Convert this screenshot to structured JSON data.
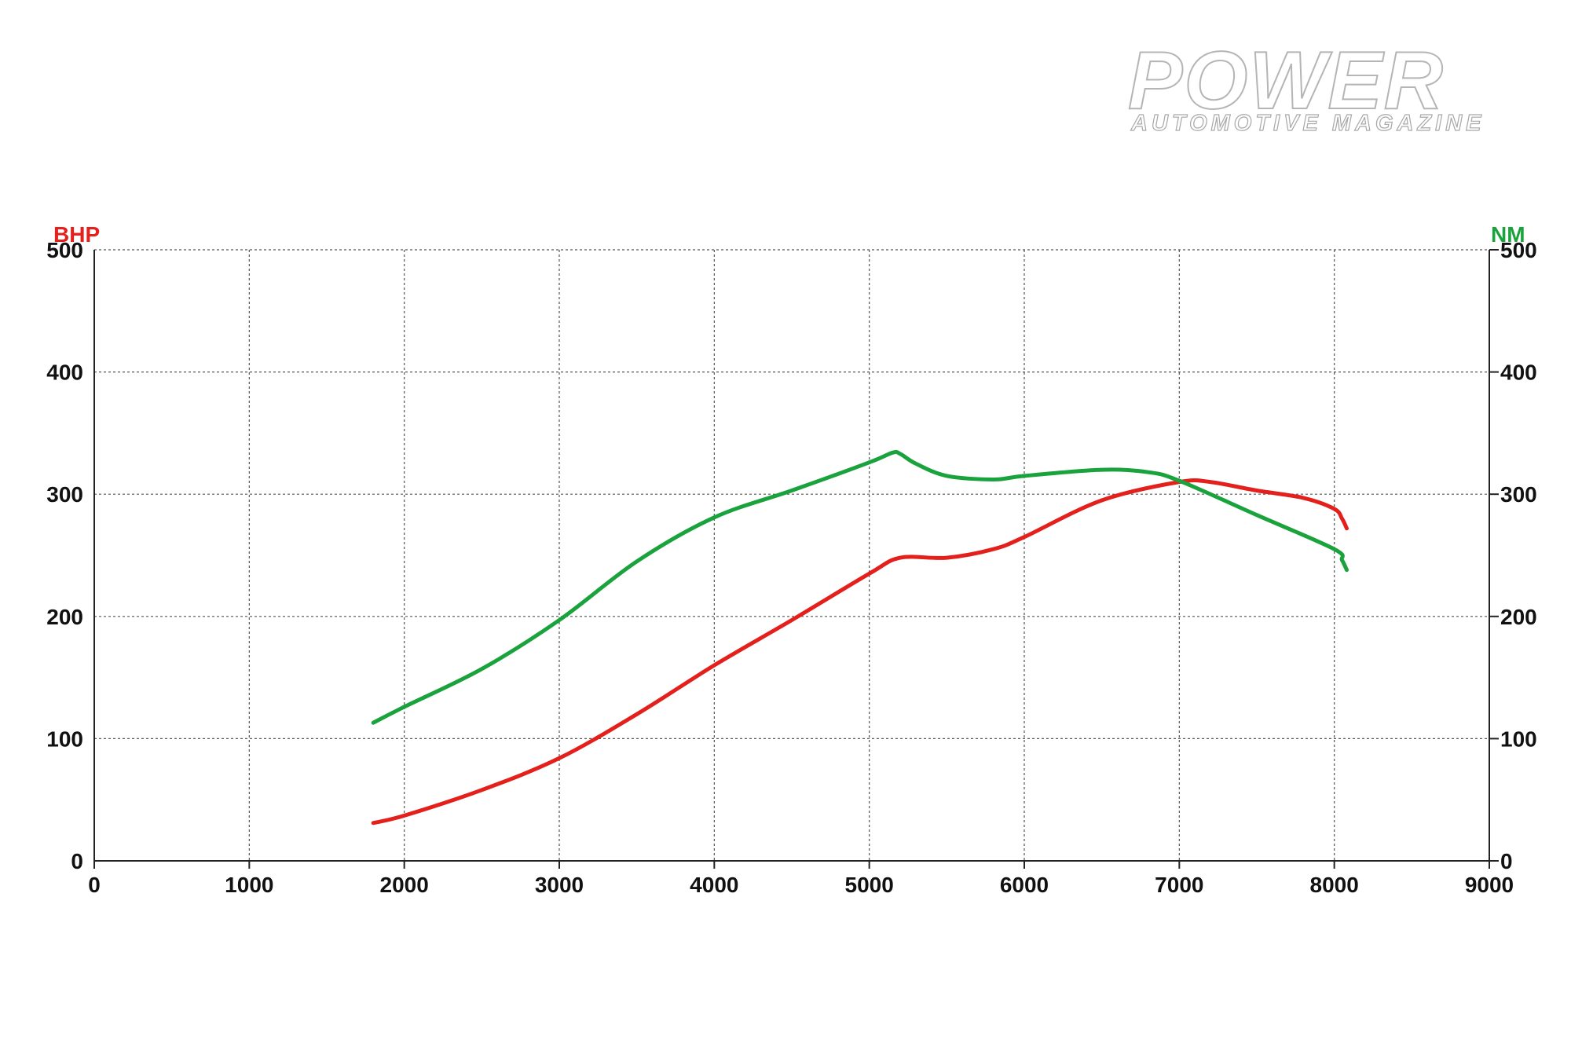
{
  "logo": {
    "title": "POWER",
    "subtitle": "AUTOMOTIVE MAGAZINE"
  },
  "chart_data": {
    "type": "line",
    "title": "",
    "xlabel": "",
    "xlim": [
      0,
      9000
    ],
    "x_ticks": [
      0,
      1000,
      2000,
      3000,
      4000,
      5000,
      6000,
      7000,
      8000,
      9000
    ],
    "y_left": {
      "label": "BHP",
      "color": "#e3201b",
      "lim": [
        0,
        500
      ],
      "ticks": [
        0,
        100,
        200,
        300,
        400,
        500
      ]
    },
    "y_right": {
      "label": "NM",
      "color": "#1aa23c",
      "lim": [
        0,
        500
      ],
      "ticks": [
        0,
        100,
        200,
        300,
        400,
        500
      ]
    },
    "grid": true,
    "series": [
      {
        "axis": "left",
        "color": "#e3201b",
        "points": [
          [
            1800,
            31
          ],
          [
            2000,
            37
          ],
          [
            2500,
            58
          ],
          [
            3000,
            84
          ],
          [
            3500,
            120
          ],
          [
            4000,
            160
          ],
          [
            4500,
            197
          ],
          [
            5000,
            235
          ],
          [
            5200,
            248
          ],
          [
            5500,
            248
          ],
          [
            5800,
            255
          ],
          [
            6000,
            265
          ],
          [
            6500,
            295
          ],
          [
            7000,
            310
          ],
          [
            7200,
            310
          ],
          [
            7500,
            303
          ],
          [
            7800,
            297
          ],
          [
            8000,
            288
          ],
          [
            8050,
            280
          ],
          [
            8080,
            272
          ]
        ]
      },
      {
        "axis": "right",
        "color": "#1aa23c",
        "points": [
          [
            1800,
            113
          ],
          [
            2000,
            126
          ],
          [
            2500,
            157
          ],
          [
            3000,
            197
          ],
          [
            3500,
            245
          ],
          [
            4000,
            281
          ],
          [
            4500,
            303
          ],
          [
            5000,
            326
          ],
          [
            5150,
            334
          ],
          [
            5200,
            333
          ],
          [
            5300,
            325
          ],
          [
            5500,
            315
          ],
          [
            5800,
            312
          ],
          [
            6000,
            315
          ],
          [
            6500,
            320
          ],
          [
            6800,
            318
          ],
          [
            7000,
            311
          ],
          [
            7500,
            283
          ],
          [
            8000,
            255
          ],
          [
            8050,
            246
          ],
          [
            8080,
            238
          ]
        ]
      }
    ]
  }
}
